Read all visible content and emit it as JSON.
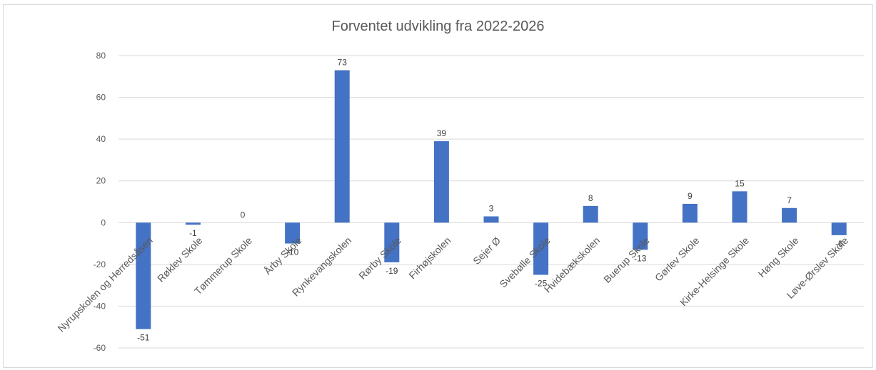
{
  "chart_data": {
    "type": "bar",
    "title": "Forventet udvikling fra 2022-2026",
    "xlabel": "",
    "ylabel": "",
    "ylim": [
      -60,
      80
    ],
    "yticks": [
      80,
      60,
      40,
      20,
      0,
      -20,
      -40,
      -60
    ],
    "grid": true,
    "legend": "none",
    "bar_color": "#4472c4",
    "categories": [
      "Nyrupskolen og Herredsåsen",
      "Røklev Skole",
      "Tømmerup Skole",
      "Årby Skole",
      "Rynkevangskolen",
      "Rørby Skole",
      "Firhøjskolen",
      "Sejer Ø",
      "Svebølle Skole",
      "Hvidebækskolen",
      "Buerup Skole",
      "Gørlev Skole",
      "Kirke-Helsinge Skole",
      "Høng Skole",
      "Løve-Ørslev Skole"
    ],
    "values": [
      -51,
      -1,
      0,
      -10,
      73,
      -19,
      39,
      3,
      -25,
      8,
      -13,
      9,
      15,
      7,
      -6
    ],
    "data_labels": [
      "-51",
      "-1",
      "0",
      "-10",
      "73",
      "-19",
      "39",
      "3",
      "-25",
      "8",
      "-13",
      "9",
      "15",
      "7",
      "-6"
    ]
  }
}
